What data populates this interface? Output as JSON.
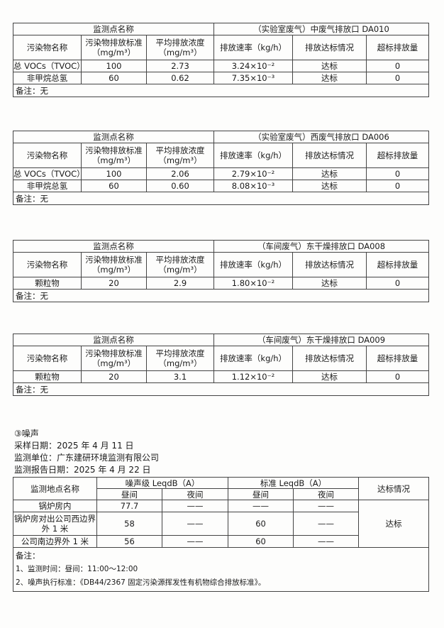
{
  "exhaust_tables": [
    {
      "point_label": "监测点名称",
      "point_name": "（实验室废气）中废气排放口  DA010",
      "headers": [
        "污染物名称",
        "污染物排放标准（mg/m³）",
        "平均排放浓度（mg/m³）",
        "排放速率（kg/h）",
        "排放达标情况",
        "超标排放量"
      ],
      "rows": [
        [
          "总 VOCs（TVOC）",
          "100",
          "2.73",
          "3.24×10⁻²",
          "达标",
          "0"
        ],
        [
          "非甲烷总氢",
          "60",
          "0.62",
          "7.35×10⁻³",
          "达标",
          "0"
        ]
      ],
      "note": "备注：无"
    },
    {
      "point_label": "监测点名称",
      "point_name": "（实验室废气）西废气排放口  DA006",
      "headers": [
        "污染物名称",
        "污染物排放标准（mg/m³）",
        "平均排放浓度（mg/m³）",
        "排放速率（kg/h）",
        "排放达标情况",
        "超标排放量"
      ],
      "rows": [
        [
          "总 VOCs（TVOC）",
          "100",
          "2.06",
          "2.79×10⁻²",
          "达标",
          "0"
        ],
        [
          "非甲烷总氢",
          "60",
          "0.60",
          "8.08×10⁻³",
          "达标",
          "0"
        ]
      ],
      "note": "备注：无"
    },
    {
      "point_label": "监测点名称",
      "point_name": "（车间废气）东干燥排放口  DA008",
      "headers": [
        "污染物名称",
        "污染物排放标准（mg/m³）",
        "平均排放浓度（mg/m³）",
        "排放速率（kg/h）",
        "排放达标情况",
        "超标排放量"
      ],
      "rows": [
        [
          "颗粒物",
          "20",
          "2.9",
          "1.80×10⁻²",
          "达标",
          "0"
        ]
      ],
      "note": "备注：无"
    },
    {
      "point_label": "监测点名称",
      "point_name": "（车间废气）东干燥排放口  DA009",
      "headers": [
        "污染物名称",
        "污染物排放标准（mg/m³）",
        "平均排放浓度（mg/m³）",
        "排放速率（kg/h）",
        "排放达标情况",
        "超标排放量"
      ],
      "rows": [
        [
          "颗粒物",
          "20",
          "3.1",
          "1.12×10⁻²",
          "达标",
          "0"
        ]
      ],
      "note": "备注：无"
    }
  ],
  "noise": {
    "section_title": "③噪声",
    "sampling_date": "采样日期：2025 年 4 月 11 日",
    "unit": "监测单位：广东建研环境监测有限公司",
    "report_date": "监测报告日期：2025 年 4 月 22 日",
    "headers": {
      "location": "监测地点名称",
      "level": "噪声级 LeqdB（A）",
      "standard": "标准 LeqdB（A）",
      "day": "昼间",
      "night": "夜间",
      "compliance": "达标情况"
    },
    "rows": [
      [
        "锅炉房内",
        "77.7",
        "——",
        "——",
        "——"
      ],
      [
        "锅炉房对出公司西边界外 1 米",
        "58",
        "——",
        "60",
        "——"
      ],
      [
        "公司南边界外 1 米",
        "56",
        "——",
        "60",
        "——"
      ]
    ],
    "compliance": "达标",
    "note_title": "备注：",
    "notes": [
      "1、监测时间：昼间：11:00～12:00",
      "2、噪声执行标准：《DB44/2367 固定污染源挥发性有机物综合排放标准》。"
    ]
  }
}
